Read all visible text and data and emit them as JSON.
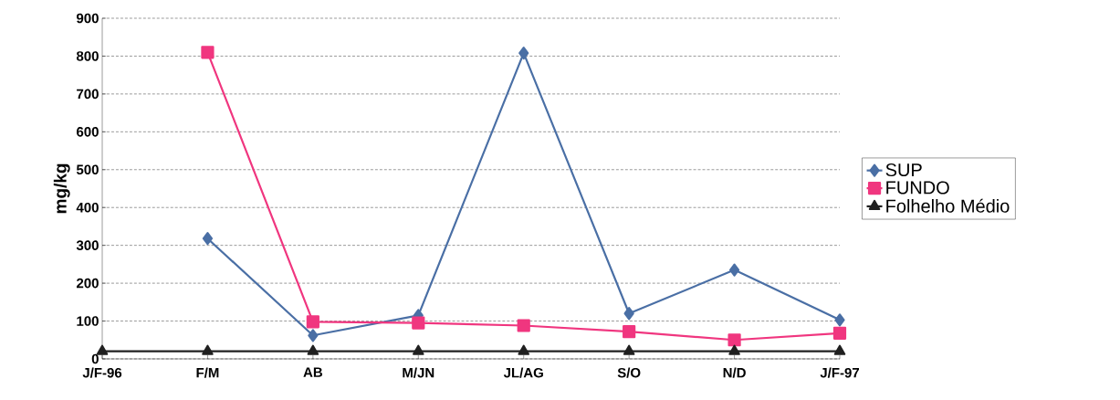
{
  "chart_data": {
    "type": "line",
    "ylabel": "mg/kg",
    "categories": [
      "J/F-96",
      "F/M",
      "AB",
      "M/JN",
      "JL/AG",
      "S/O",
      "N/D",
      "J/F-97"
    ],
    "series": [
      {
        "name": "SUP",
        "color": "#4a6fa5",
        "marker": "diamond",
        "values": [
          null,
          318,
          62,
          115,
          808,
          120,
          235,
          103
        ]
      },
      {
        "name": "FUNDO",
        "color": "#f0367f",
        "marker": "square",
        "values": [
          null,
          810,
          98,
          95,
          88,
          72,
          50,
          68
        ]
      },
      {
        "name": "Folhelho Médio",
        "color": "#202020",
        "marker": "triangle",
        "values": [
          20,
          20,
          20,
          20,
          20,
          20,
          20,
          20
        ]
      }
    ],
    "ylim": [
      0,
      900
    ],
    "yticks": [
      0,
      100,
      200,
      300,
      400,
      500,
      600,
      700,
      800,
      900
    ],
    "grid": "y",
    "legend": "right",
    "line_style": "solid"
  }
}
